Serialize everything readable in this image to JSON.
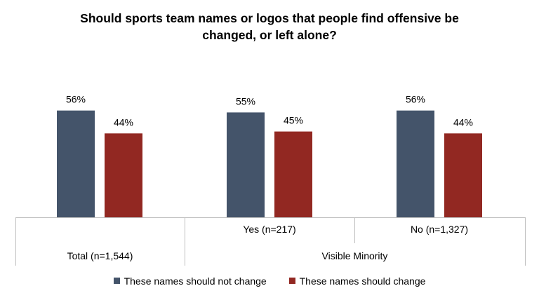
{
  "chart_data": {
    "type": "bar",
    "title": "Should sports team names or logos that people find offensive be\nchanged, or left alone?",
    "groups": [
      {
        "label": "",
        "parent": "Total (n=1,544)"
      },
      {
        "label": "Yes (n=217)",
        "parent": "Visible Minority"
      },
      {
        "label": "No (n=1,327)",
        "parent": "Visible Minority"
      }
    ],
    "parent_labels": [
      "Total (n=1,544)",
      "Visible Minority"
    ],
    "series": [
      {
        "name": "These names should not change",
        "color": "#44546A",
        "values": [
          56,
          55,
          56
        ],
        "labels": [
          "56%",
          "55%",
          "56%"
        ]
      },
      {
        "name": "These names should change",
        "color": "#922822",
        "values": [
          44,
          45,
          44
        ],
        "labels": [
          "44%",
          "45%",
          "44%"
        ]
      }
    ],
    "ylim": [
      0,
      100
    ],
    "xlabel": "",
    "ylabel": ""
  }
}
